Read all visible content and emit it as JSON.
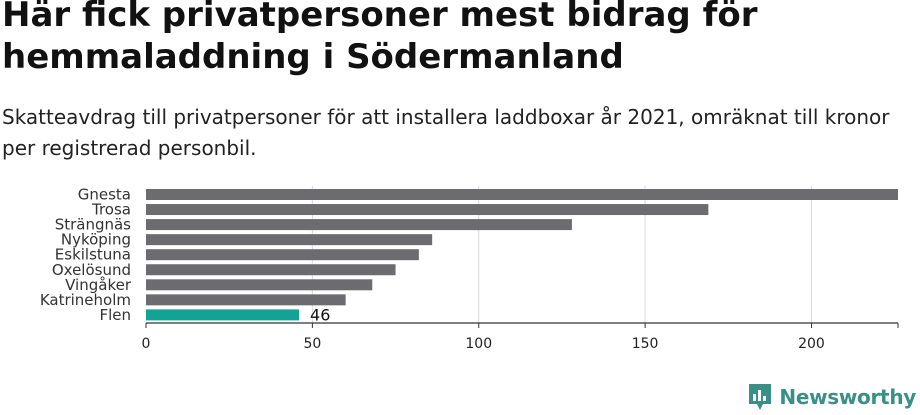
{
  "header": {
    "title": "Här fick privatpersoner mest bidrag för hemmaladdning i Södermanland",
    "subtitle": "Skatteavdrag till privatpersoner för att installera laddboxar år 2021, omräknat till kronor per registrerad personbil."
  },
  "brand": {
    "name": "Newsworthy",
    "icon": "newsworthy-logo-icon",
    "color": "#3a8f86"
  },
  "colors": {
    "bar": "#6c6b70",
    "highlight": "#13a396",
    "grid": "#d9d9d9",
    "axis": "#333333"
  },
  "chart_data": {
    "type": "bar",
    "orientation": "horizontal",
    "categories": [
      "Gnesta",
      "Trosa",
      "Strängnäs",
      "Nyköping",
      "Eskilstuna",
      "Oxelösund",
      "Vingåker",
      "Katrineholm",
      "Flen"
    ],
    "values": [
      226,
      169,
      128,
      86,
      82,
      75,
      68,
      60,
      46
    ],
    "highlight": "Flen",
    "data_labels": [
      {
        "category": "Flen",
        "text": "46"
      }
    ],
    "xticks": [
      0,
      50,
      100,
      150,
      200
    ],
    "xlim": [
      0,
      226
    ],
    "grid": true
  }
}
